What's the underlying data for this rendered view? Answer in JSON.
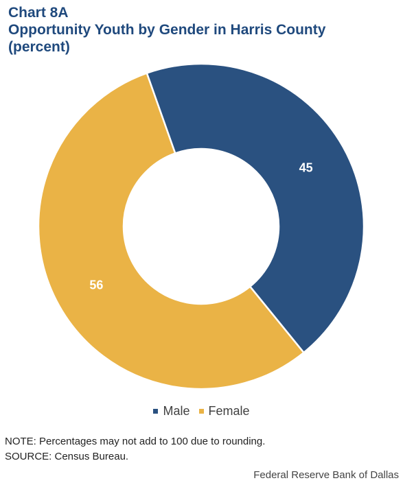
{
  "header": {
    "chart_number": "Chart 8A",
    "title": "Opportunity Youth by Gender in Harris County",
    "unit": "(percent)"
  },
  "chart_data": {
    "type": "pie",
    "style": "donut",
    "title": "Opportunity Youth by Gender in Harris County",
    "unit": "percent",
    "categories": [
      "Male",
      "Female"
    ],
    "values": [
      45,
      56
    ],
    "data_labels": [
      "45",
      "56"
    ],
    "colors": [
      "#2a5180",
      "#eab346"
    ],
    "label_color": "#ffffff",
    "legend_position": "bottom"
  },
  "legend": {
    "items": [
      {
        "label": "Male",
        "color": "#2a5180"
      },
      {
        "label": "Female",
        "color": "#eab346"
      }
    ]
  },
  "footer": {
    "note": "NOTE: Percentages may not add to 100 due to rounding.",
    "source": "SOURCE: Census Bureau.",
    "credit": "Federal Reserve Bank of Dallas"
  }
}
